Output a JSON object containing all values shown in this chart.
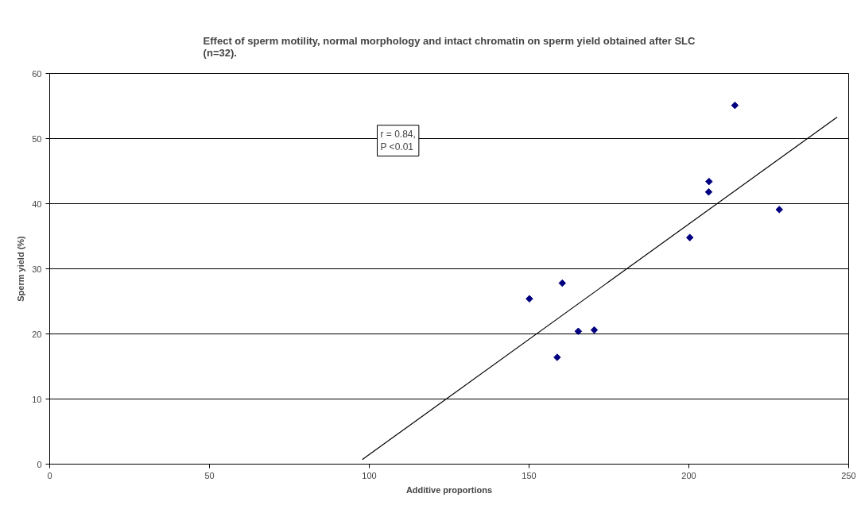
{
  "chart_data": {
    "type": "scatter",
    "title": "Effect of sperm motility, normal morphology and intact chromatin on sperm yield obtained after SLC\n(n=32).",
    "xlabel": "Additive proportions",
    "ylabel": "Sperm yield (%)",
    "annotations": [
      "r = 0.84,\nP <0.01"
    ],
    "series": [
      {
        "marker": "diamond",
        "color": "#000080",
        "x": [
          214.4,
          206.3,
          206.2,
          228.3,
          200.3,
          160.4,
          150.1,
          170.4,
          165.4,
          158.8
        ],
        "values": [
          55.1,
          43.4,
          41.8,
          39.1,
          34.8,
          27.8,
          25.4,
          20.6,
          20.4,
          16.4
        ]
      },
      {
        "type": "line",
        "marker": "none",
        "color": "#000000",
        "x": [
          97.8,
          246.4
        ],
        "values": [
          0.7,
          53.3
        ]
      }
    ],
    "xlim": [
      0,
      250
    ],
    "xticks": [
      0,
      50,
      100,
      150,
      200,
      250
    ],
    "ylim": [
      0,
      60
    ],
    "yticks": [
      0,
      10,
      20,
      30,
      40,
      50,
      60
    ],
    "grid": "y",
    "line_style": "solid"
  }
}
